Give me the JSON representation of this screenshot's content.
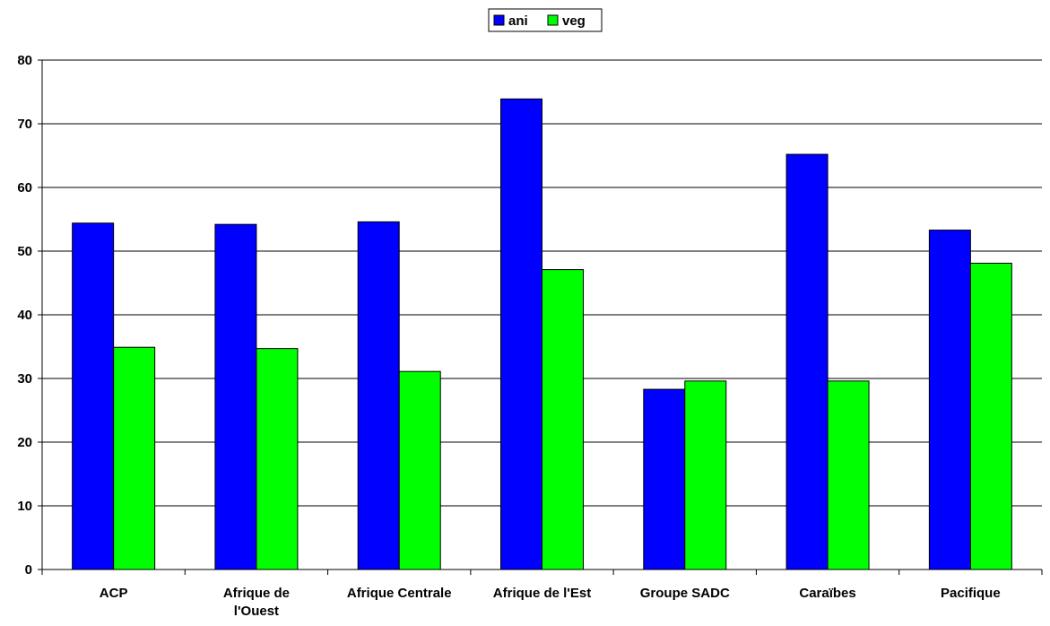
{
  "chart_data": {
    "type": "bar",
    "title": "",
    "xlabel": "",
    "ylabel": "",
    "categories": [
      [
        "ACP"
      ],
      [
        "Afrique de",
        "l'Ouest"
      ],
      [
        "Afrique Centrale"
      ],
      [
        "Afrique de l'Est"
      ],
      [
        "Groupe SADC"
      ],
      [
        "Caraïbes"
      ],
      [
        "Pacifique"
      ]
    ],
    "series": [
      {
        "name": "ani",
        "color": "#0000FF",
        "values": [
          54.4,
          54.2,
          54.6,
          73.9,
          28.3,
          65.2,
          53.3
        ]
      },
      {
        "name": "veg",
        "color": "#00FF00",
        "values": [
          34.9,
          34.7,
          31.1,
          47.1,
          29.6,
          29.6,
          48.1
        ]
      }
    ],
    "ylim": [
      0,
      80
    ],
    "yticks": [
      0,
      10,
      20,
      30,
      40,
      50,
      60,
      70,
      80
    ],
    "grid": true,
    "legend": "top-center"
  }
}
